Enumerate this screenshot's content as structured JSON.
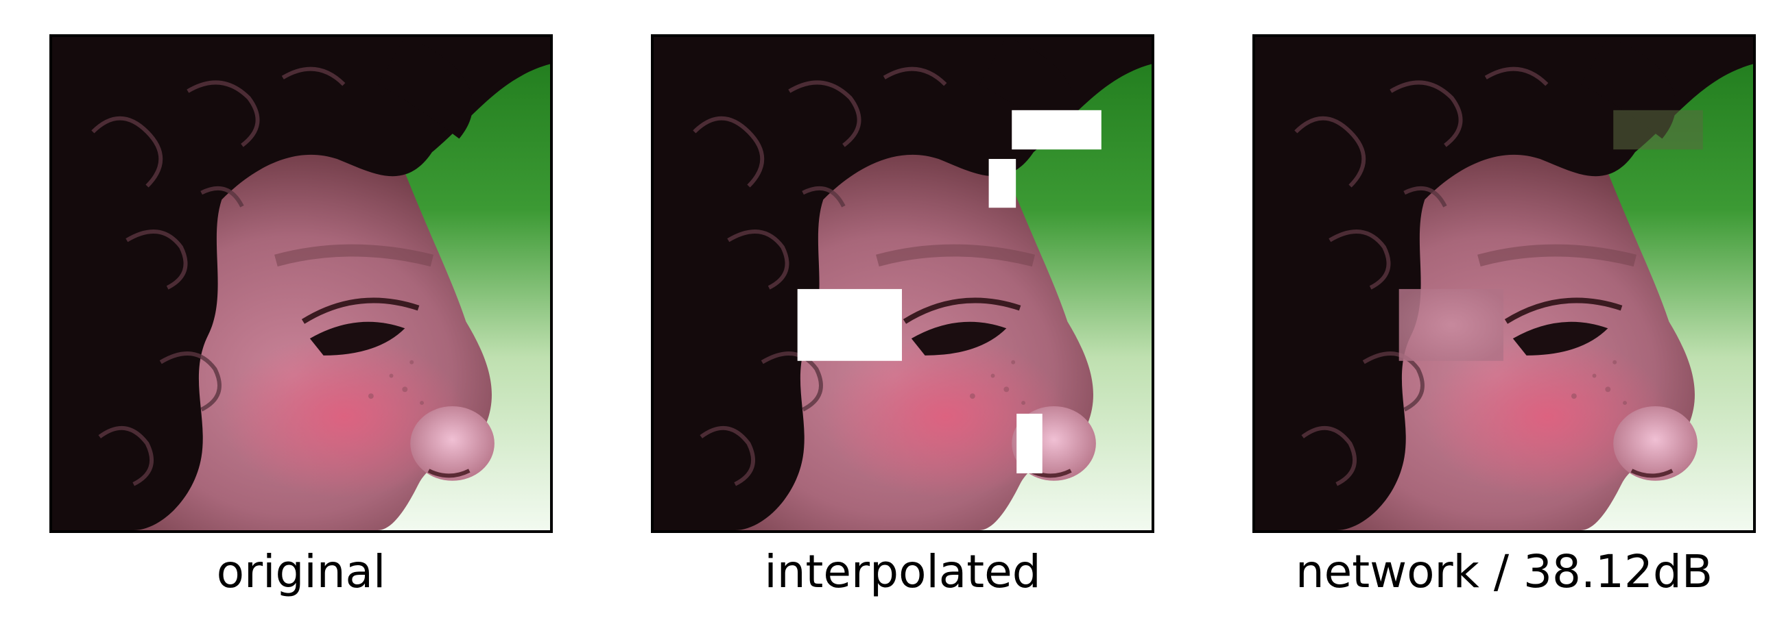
{
  "panels": [
    {
      "id": "original",
      "caption": "original"
    },
    {
      "id": "interpolated",
      "caption": "interpolated"
    },
    {
      "id": "network",
      "caption": "network / 38.12dB"
    }
  ],
  "colors": {
    "hair": "#140a0c",
    "skin": "#b77284",
    "cheek": "#cc5a7a",
    "background_green": "#2f8a2a",
    "background_light": "#dff0d8",
    "mask": "#ffffff"
  }
}
